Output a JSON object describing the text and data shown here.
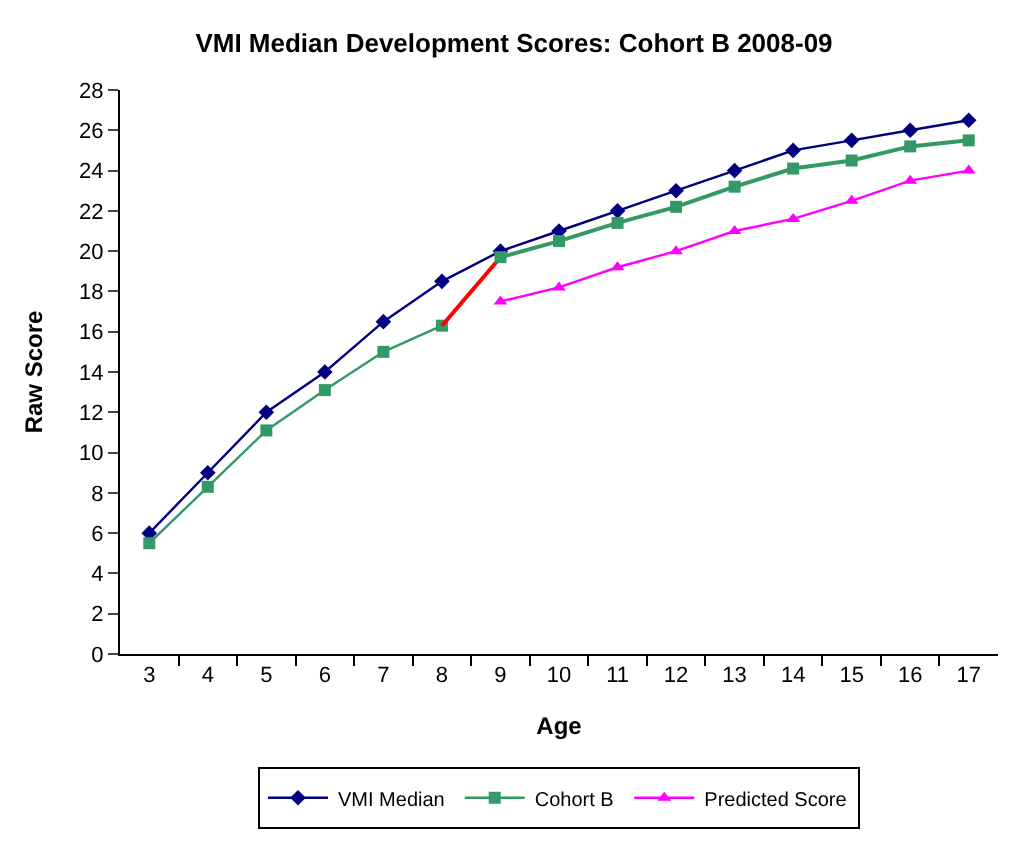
{
  "chart_data": {
    "type": "line",
    "title": "VMI Median Development Scores: Cohort B 2008-09",
    "xlabel": "Age",
    "ylabel": "Raw Score",
    "categories": [
      "3",
      "4",
      "5",
      "6",
      "7",
      "8",
      "9",
      "10",
      "11",
      "12",
      "13",
      "14",
      "15",
      "16",
      "17"
    ],
    "series": [
      {
        "name": "VMI Median",
        "color": "#000080",
        "marker": "diamond",
        "values": [
          6,
          9,
          12,
          14,
          16.5,
          18.5,
          20,
          21,
          22,
          23,
          24,
          25,
          25.5,
          26,
          26.5
        ]
      },
      {
        "name": "Cohort B",
        "color": "#339966",
        "marker": "square",
        "values": [
          5.5,
          8.3,
          11.1,
          13.1,
          15,
          16.3,
          null,
          null,
          null,
          null,
          null,
          null,
          null,
          null,
          null
        ]
      },
      {
        "color": "#ff0000",
        "marker": "none",
        "values": [
          null,
          null,
          null,
          null,
          null,
          16.3,
          19.7,
          null,
          null,
          null,
          null,
          null,
          null,
          null,
          null
        ]
      },
      {
        "color": "#339966",
        "marker": "square",
        "values": [
          null,
          null,
          null,
          null,
          null,
          null,
          19.7,
          20.5,
          21.4,
          22.2,
          23.2,
          24.1,
          24.5,
          25.2,
          25.5
        ]
      },
      {
        "name": "Predicted Score",
        "color": "#ff00ff",
        "marker": "triangle",
        "values": [
          null,
          null,
          null,
          null,
          null,
          null,
          17.5,
          18.2,
          19.2,
          20,
          21,
          21.6,
          22.5,
          23.5,
          24
        ]
      }
    ],
    "ylim": [
      0,
      28
    ],
    "yticks": [
      0,
      2,
      4,
      6,
      8,
      10,
      12,
      14,
      16,
      18,
      20,
      22,
      24,
      26,
      28
    ],
    "grid": false,
    "legend": "bottom"
  }
}
